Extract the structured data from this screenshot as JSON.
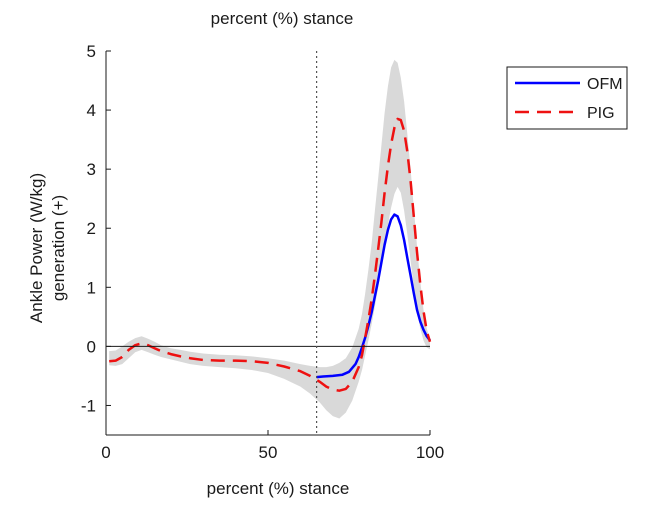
{
  "chart_data": {
    "type": "line",
    "top_label": "percent (%) stance",
    "xlabel": "percent (%) stance",
    "ylabel_line1": "Ankle Power (W/kg)",
    "ylabel_line2": "generation (+)",
    "xlim": [
      0,
      100
    ],
    "ylim": [
      -1.5,
      5
    ],
    "xticks": [
      0,
      50,
      100
    ],
    "yticks": [
      -1,
      0,
      1,
      2,
      3,
      4,
      5
    ],
    "grid": false,
    "zero_line": 0,
    "vertical_marker_x": 65,
    "legend_position": "top-right-outside",
    "series": [
      {
        "name": "OFM",
        "color": "#0000ff",
        "dash": "solid",
        "x": [
          65,
          67,
          70,
          73,
          75,
          77,
          78,
          79,
          80,
          81,
          82,
          83,
          84,
          85,
          86,
          87,
          88,
          89,
          90,
          91,
          92,
          93,
          94,
          95,
          96,
          97,
          98,
          99,
          100
        ],
        "y": [
          -0.52,
          -0.51,
          -0.5,
          -0.48,
          -0.43,
          -0.3,
          -0.18,
          -0.02,
          0.15,
          0.35,
          0.58,
          0.85,
          1.12,
          1.42,
          1.72,
          1.97,
          2.15,
          2.23,
          2.2,
          2.05,
          1.8,
          1.5,
          1.2,
          0.9,
          0.62,
          0.42,
          0.28,
          0.17,
          0.1
        ]
      },
      {
        "name": "PIG",
        "color": "#ee1111",
        "dash": "dashed",
        "x": [
          1,
          3,
          5,
          7,
          9,
          11,
          13,
          15,
          17,
          20,
          23,
          26,
          30,
          35,
          40,
          45,
          50,
          55,
          60,
          63,
          66,
          68,
          70,
          72,
          74,
          76,
          78,
          79,
          80,
          81,
          82,
          83,
          84,
          85,
          86,
          87,
          88,
          89,
          90,
          91,
          92,
          93,
          94,
          95,
          96,
          97,
          98,
          99,
          100
        ],
        "y": [
          -0.25,
          -0.24,
          -0.18,
          -0.06,
          0.02,
          0.05,
          0.02,
          -0.03,
          -0.08,
          -0.13,
          -0.17,
          -0.2,
          -0.23,
          -0.24,
          -0.24,
          -0.25,
          -0.28,
          -0.34,
          -0.42,
          -0.5,
          -0.6,
          -0.68,
          -0.73,
          -0.75,
          -0.72,
          -0.6,
          -0.35,
          -0.15,
          0.15,
          0.45,
          0.8,
          1.2,
          1.65,
          2.1,
          2.6,
          3.05,
          3.42,
          3.7,
          3.85,
          3.83,
          3.65,
          3.3,
          2.8,
          2.2,
          1.6,
          1.05,
          0.6,
          0.25,
          0.08
        ]
      }
    ],
    "band": {
      "fill": "#d9d9d9",
      "x": [
        1,
        3,
        5,
        7,
        9,
        11,
        13,
        15,
        17,
        20,
        23,
        26,
        30,
        35,
        40,
        45,
        50,
        55,
        60,
        63,
        66,
        68,
        70,
        72,
        74,
        76,
        78,
        79,
        80,
        81,
        82,
        83,
        84,
        85,
        86,
        87,
        88,
        89,
        90,
        91,
        92,
        93,
        94,
        95,
        96,
        97,
        98,
        99,
        100
      ],
      "upper": [
        -0.08,
        -0.07,
        0.0,
        0.08,
        0.14,
        0.17,
        0.13,
        0.08,
        0.02,
        -0.03,
        -0.06,
        -0.09,
        -0.12,
        -0.14,
        -0.15,
        -0.17,
        -0.2,
        -0.24,
        -0.3,
        -0.33,
        -0.35,
        -0.35,
        -0.33,
        -0.28,
        -0.2,
        -0.02,
        0.3,
        0.55,
        0.9,
        1.3,
        1.75,
        2.3,
        2.85,
        3.4,
        3.95,
        4.4,
        4.72,
        4.85,
        4.8,
        4.55,
        4.15,
        3.6,
        3.0,
        2.35,
        1.7,
        1.1,
        0.62,
        0.3,
        0.12
      ],
      "lower": [
        -0.32,
        -0.33,
        -0.3,
        -0.2,
        -0.1,
        -0.06,
        -0.1,
        -0.14,
        -0.18,
        -0.22,
        -0.26,
        -0.3,
        -0.33,
        -0.35,
        -0.37,
        -0.4,
        -0.45,
        -0.55,
        -0.68,
        -0.8,
        -0.95,
        -1.08,
        -1.18,
        -1.22,
        -1.12,
        -0.92,
        -0.6,
        -0.4,
        -0.15,
        0.1,
        0.38,
        0.68,
        1.0,
        1.35,
        1.7,
        2.05,
        2.35,
        2.58,
        2.7,
        2.6,
        2.3,
        1.9,
        1.45,
        1.0,
        0.6,
        0.3,
        0.1,
        -0.02,
        -0.05
      ]
    }
  }
}
